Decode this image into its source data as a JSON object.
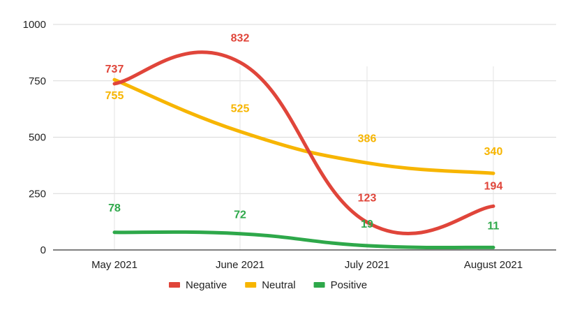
{
  "chart_data": {
    "type": "line",
    "categories": [
      "May 2021",
      "June 2021",
      "July 2021",
      "August 2021"
    ],
    "series": [
      {
        "name": "Negative",
        "values": [
          737,
          832,
          123,
          194
        ],
        "color": "#e0453a"
      },
      {
        "name": "Neutral",
        "values": [
          755,
          525,
          386,
          340
        ],
        "color": "#f7b500"
      },
      {
        "name": "Positive",
        "values": [
          78,
          72,
          19,
          11
        ],
        "color": "#2ea84a"
      }
    ],
    "yticks": [
      0,
      250,
      500,
      750,
      1000
    ],
    "ylim": [
      0,
      1000
    ],
    "grid": true,
    "legend": "bottom",
    "smooth": true
  }
}
